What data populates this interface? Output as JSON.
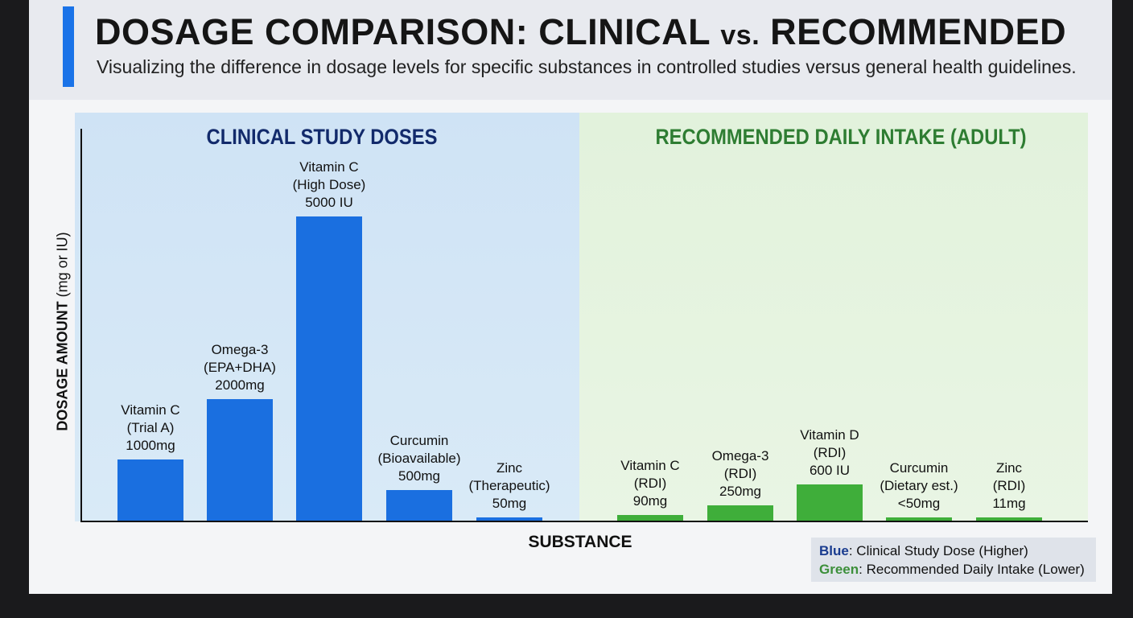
{
  "header": {
    "title_main": "DOSAGE COMPARISON: CLINICAL",
    "title_vs": "vs.",
    "title_end": "RECOMMENDED",
    "subtitle": "Visualizing the difference in dosage levels for specific substances in controlled studies versus general health guidelines."
  },
  "chart_data": {
    "type": "bar",
    "title": "DOSAGE COMPARISON: CLINICAL vs. RECOMMENDED",
    "xlabel": "SUBSTANCE",
    "ylabel_bold": "DOSAGE AMOUNT",
    "ylabel_unit": "(mg or IU)",
    "grid": false,
    "legend_placement": "bottom-right",
    "groups": [
      {
        "title": "CLINICAL STUDY DOSES",
        "color": "#1a6fe0",
        "title_color": "#122a6b",
        "bars": [
          {
            "name": "Vitamin C",
            "qualifier": "(Trial A)",
            "label": "1000mg",
            "value": 1000
          },
          {
            "name": "Omega-3",
            "qualifier": "(EPA+DHA)",
            "label": "2000mg",
            "value": 2000
          },
          {
            "name": "Vitamin C",
            "qualifier": "(High Dose)",
            "label": "5000 IU",
            "value": 5000
          },
          {
            "name": "Curcumin",
            "qualifier": "(Bioavailable)",
            "label": "500mg",
            "value": 500
          },
          {
            "name": "Zinc",
            "qualifier": "(Therapeutic)",
            "label": "50mg",
            "value": 50
          }
        ]
      },
      {
        "title": "RECOMMENDED DAILY INTAKE (ADULT)",
        "color": "#3fae3a",
        "title_color": "#2e7d32",
        "bars": [
          {
            "name": "Vitamin C",
            "qualifier": "(RDI)",
            "label": "90mg",
            "value": 90
          },
          {
            "name": "Omega-3",
            "qualifier": "(RDI)",
            "label": "250mg",
            "value": 250
          },
          {
            "name": "Vitamin D",
            "qualifier": "(RDI)",
            "label": "600 IU",
            "value": 600
          },
          {
            "name": "Curcumin",
            "qualifier": "(Dietary est.)",
            "label": "<50mg",
            "value": 50
          },
          {
            "name": "Zinc",
            "qualifier": "(RDI)",
            "label": "11mg",
            "value": 11
          }
        ]
      }
    ],
    "legend": [
      {
        "key": "Blue",
        "text": ": Clinical Study Dose (Higher)",
        "color": "#1a3c8f"
      },
      {
        "key": "Green",
        "text": ": Recommended Daily Intake (Lower)",
        "color": "#3c8f3a"
      }
    ]
  }
}
